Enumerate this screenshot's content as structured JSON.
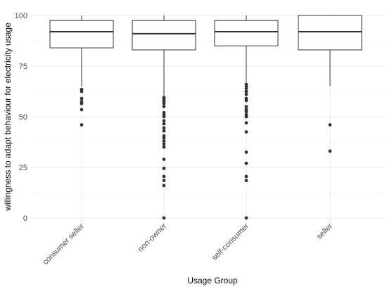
{
  "chart_data": {
    "type": "boxplot",
    "xlabel": "Usage Group",
    "ylabel": "willingness to adapt behaviour for electricity usage",
    "ylim": [
      0,
      100
    ],
    "yticks": [
      0,
      25,
      50,
      75,
      100
    ],
    "grid": true,
    "categories": [
      "consumer seller",
      "non-owner",
      "self-consumer",
      "seller"
    ],
    "boxes": [
      {
        "category": "consumer seller",
        "whisker_low": 65,
        "q1": 84,
        "median": 92,
        "q3": 97.5,
        "whisker_high": 100,
        "outliers": [
          63.5,
          62.5,
          59,
          57.5,
          56.5,
          53.5,
          46
        ]
      },
      {
        "category": "non-owner",
        "whisker_low": 60,
        "q1": 83,
        "median": 91,
        "q3": 97.5,
        "whisker_high": 100,
        "outliers": [
          59.5,
          58.5,
          57.5,
          56.5,
          55,
          52,
          51,
          50,
          48,
          46.5,
          44.5,
          43,
          40.5,
          39.5,
          38,
          36.5,
          35,
          29,
          24.5,
          20.5,
          18.5,
          16,
          0
        ]
      },
      {
        "category": "self-consumer",
        "whisker_low": 67,
        "q1": 85,
        "median": 92,
        "q3": 97.5,
        "whisker_high": 100,
        "outliers": [
          66,
          65,
          64,
          62.5,
          61,
          59,
          58,
          55,
          53.5,
          52.5,
          51,
          50,
          47,
          42.5,
          32.5,
          27,
          20.5,
          18.5,
          0
        ]
      },
      {
        "category": "seller",
        "whisker_low": 65,
        "q1": 83,
        "median": 92,
        "q3": 100,
        "whisker_high": 100,
        "outliers": [
          46,
          33
        ]
      }
    ]
  }
}
